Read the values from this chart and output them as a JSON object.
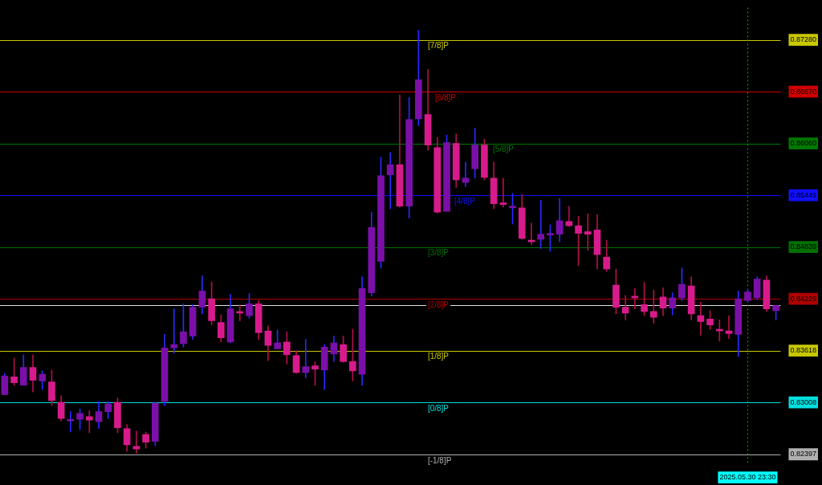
{
  "chart_data": {
    "type": "candlestick",
    "categories": [
      null,
      null,
      null,
      null,
      null,
      null,
      null,
      null,
      null,
      null,
      null,
      null,
      null,
      null,
      null,
      null,
      null,
      null,
      null,
      null,
      null,
      null,
      null,
      null,
      null,
      null,
      null,
      null,
      null,
      null,
      null,
      null,
      null,
      null,
      null,
      null,
      null,
      null,
      null,
      null,
      null,
      null,
      null,
      null,
      null,
      null,
      null,
      null,
      null,
      null,
      null,
      null,
      null,
      null,
      null,
      null,
      null,
      null,
      null,
      null,
      null,
      null,
      null,
      null,
      null,
      null,
      null,
      null,
      null,
      null,
      null,
      null,
      null,
      null,
      null,
      null,
      null,
      null,
      null,
      "2025.05.30 23:30",
      null,
      null,
      null
    ],
    "ohlc": [
      [
        0.831,
        0.8335,
        0.831,
        0.8332
      ],
      [
        0.8331,
        0.8353,
        0.8321,
        0.8324
      ],
      [
        0.8321,
        0.8357,
        0.8321,
        0.8342
      ],
      [
        0.8342,
        0.8357,
        0.8313,
        0.8327
      ],
      [
        0.8326,
        0.8338,
        0.8316,
        0.8334
      ],
      [
        0.8325,
        0.8339,
        0.8297,
        0.8303
      ],
      [
        0.8301,
        0.8309,
        0.8279,
        0.8282
      ],
      [
        0.8279,
        0.829,
        0.8266,
        0.828
      ],
      [
        0.8281,
        0.8293,
        0.8269,
        0.8288
      ],
      [
        0.8284,
        0.8291,
        0.8265,
        0.828
      ],
      [
        0.8278,
        0.8302,
        0.827,
        0.829
      ],
      [
        0.829,
        0.8302,
        0.8282,
        0.8299
      ],
      [
        0.8301,
        0.8306,
        0.8265,
        0.8271
      ],
      [
        0.827,
        0.8275,
        0.8243,
        0.8251
      ],
      [
        0.8249,
        0.8267,
        0.8241,
        0.8246
      ],
      [
        0.8263,
        0.8266,
        0.8247,
        0.8254
      ],
      [
        0.8255,
        0.8301,
        0.825,
        0.83
      ],
      [
        0.8302,
        0.8381,
        0.8297,
        0.8365
      ],
      [
        0.8365,
        0.8411,
        0.8359,
        0.8369
      ],
      [
        0.837,
        0.8417,
        0.8366,
        0.8384
      ],
      [
        0.8379,
        0.8416,
        0.8375,
        0.8413
      ],
      [
        0.8413,
        0.845,
        0.8405,
        0.8432
      ],
      [
        0.8423,
        0.8443,
        0.8392,
        0.8397
      ],
      [
        0.8395,
        0.8404,
        0.8372,
        0.8377
      ],
      [
        0.8372,
        0.8428,
        0.8371,
        0.8411
      ],
      [
        0.8407,
        0.8416,
        0.8397,
        0.8406
      ],
      [
        0.8403,
        0.8429,
        0.84,
        0.8417
      ],
      [
        0.8417,
        0.8421,
        0.8375,
        0.8383
      ],
      [
        0.8385,
        0.8391,
        0.835,
        0.8368
      ],
      [
        0.8364,
        0.8386,
        0.8364,
        0.8371
      ],
      [
        0.8372,
        0.8384,
        0.8346,
        0.8357
      ],
      [
        0.8356,
        0.8362,
        0.8335,
        0.8336
      ],
      [
        0.8336,
        0.8375,
        0.833,
        0.8343
      ],
      [
        0.8344,
        0.8349,
        0.8321,
        0.834
      ],
      [
        0.8339,
        0.8369,
        0.8316,
        0.8366
      ],
      [
        0.8358,
        0.8379,
        0.8349,
        0.8371
      ],
      [
        0.8369,
        0.8379,
        0.8348,
        0.8349
      ],
      [
        0.8349,
        0.8387,
        0.8326,
        0.8338
      ],
      [
        0.8334,
        0.8449,
        0.8321,
        0.8435
      ],
      [
        0.843,
        0.8525,
        0.8426,
        0.8507
      ],
      [
        0.8467,
        0.859,
        0.8459,
        0.8568
      ],
      [
        0.8569,
        0.8595,
        0.8529,
        0.8581
      ],
      [
        0.8581,
        0.8663,
        0.8531,
        0.8532
      ],
      [
        0.8532,
        0.866,
        0.8518,
        0.8634
      ],
      [
        0.8635,
        0.8739,
        0.8627,
        0.8681
      ],
      [
        0.864,
        0.8693,
        0.8598,
        0.8604
      ],
      [
        0.8601,
        0.8613,
        0.8524,
        0.8525
      ],
      [
        0.8526,
        0.8616,
        0.8526,
        0.8607
      ],
      [
        0.8606,
        0.8617,
        0.8554,
        0.8563
      ],
      [
        0.856,
        0.8584,
        0.8555,
        0.8565
      ],
      [
        0.8576,
        0.8624,
        0.8565,
        0.8604
      ],
      [
        0.8604,
        0.8611,
        0.8563,
        0.8566
      ],
      [
        0.8565,
        0.8584,
        0.8529,
        0.8535
      ],
      [
        0.8535,
        0.8565,
        0.8531,
        0.8534
      ],
      [
        0.853,
        0.8547,
        0.8511,
        0.8532
      ],
      [
        0.853,
        0.8546,
        0.8493,
        0.8494
      ],
      [
        0.8492,
        0.8512,
        0.8487,
        0.849
      ],
      [
        0.8493,
        0.8539,
        0.8482,
        0.8499
      ],
      [
        0.8498,
        0.851,
        0.8479,
        0.8499
      ],
      [
        0.8499,
        0.8541,
        0.849,
        0.8515
      ],
      [
        0.8514,
        0.8532,
        0.8508,
        0.8509
      ],
      [
        0.8509,
        0.852,
        0.8462,
        0.85
      ],
      [
        0.8502,
        0.8523,
        0.848,
        0.8499
      ],
      [
        0.8504,
        0.8522,
        0.8458,
        0.8475
      ],
      [
        0.8472,
        0.8492,
        0.8455,
        0.8458
      ],
      [
        0.8439,
        0.8458,
        0.8405,
        0.8413
      ],
      [
        0.8413,
        0.8427,
        0.8398,
        0.8406
      ],
      [
        0.8426,
        0.8435,
        0.8411,
        0.8424
      ],
      [
        0.8416,
        0.8442,
        0.8403,
        0.8408
      ],
      [
        0.8408,
        0.8433,
        0.8394,
        0.8401
      ],
      [
        0.8425,
        0.8436,
        0.8403,
        0.8412
      ],
      [
        0.8412,
        0.843,
        0.8404,
        0.8424
      ],
      [
        0.8424,
        0.8459,
        0.8421,
        0.844
      ],
      [
        0.8438,
        0.8449,
        0.8398,
        0.8405
      ],
      [
        0.8403,
        0.8419,
        0.838,
        0.8396
      ],
      [
        0.8399,
        0.8409,
        0.8387,
        0.8392
      ],
      [
        0.8386,
        0.8398,
        0.8373,
        0.8385
      ],
      [
        0.8385,
        0.8403,
        0.8376,
        0.8382
      ],
      [
        0.8381,
        0.8432,
        0.8355,
        0.8423
      ],
      [
        0.8421,
        0.8434,
        0.8419,
        0.8431
      ],
      [
        0.8424,
        0.8449,
        0.8422,
        0.8446
      ],
      [
        0.8445,
        0.845,
        0.8408,
        0.8411
      ],
      [
        0.8409,
        0.8415,
        0.8398,
        0.8415
      ]
    ],
    "colors": [
      "#7b10a8",
      "#d81b8c",
      "#7b10a8",
      "#d81b8c",
      "#7b10a8",
      "#d81b8c",
      "#d81b8c",
      "#7b10a8",
      "#7b10a8",
      "#d81b8c",
      "#7b10a8",
      "#7b10a8",
      "#d81b8c",
      "#d81b8c",
      "#d81b8c",
      "#d81b8c",
      "#7b10a8",
      "#7b10a8",
      "#7b10a8",
      "#7b10a8",
      "#7b10a8",
      "#7b10a8",
      "#d81b8c",
      "#d81b8c",
      "#7b10a8",
      "#d81b8c",
      "#7b10a8",
      "#d81b8c",
      "#d81b8c",
      "#7b10a8",
      "#d81b8c",
      "#d81b8c",
      "#7b10a8",
      "#d81b8c",
      "#7b10a8",
      "#7b10a8",
      "#d81b8c",
      "#d81b8c",
      "#7b10a8",
      "#7b10a8",
      "#7b10a8",
      "#7b10a8",
      "#d81b8c",
      "#7b10a8",
      "#7b10a8",
      "#d81b8c",
      "#d81b8c",
      "#7b10a8",
      "#d81b8c",
      "#7b10a8",
      "#7b10a8",
      "#d81b8c",
      "#d81b8c",
      "#d81b8c",
      "#7b10a8",
      "#d81b8c",
      "#d81b8c",
      "#7b10a8",
      "#7b10a8",
      "#7b10a8",
      "#d81b8c",
      "#d81b8c",
      "#d81b8c",
      "#d81b8c",
      "#d81b8c",
      "#d81b8c",
      "#d81b8c",
      "#d81b8c",
      "#d81b8c",
      "#d81b8c",
      "#d81b8c",
      "#7b10a8",
      "#7b10a8",
      "#d81b8c",
      "#d81b8c",
      "#d81b8c",
      "#d81b8c",
      "#d81b8c",
      "#7b10a8",
      "#7b10a8",
      "#7b10a8",
      "#d81b8c",
      "#7b10a8"
    ],
    "ylim": [
      0.8227,
      0.8766
    ],
    "yticks": [
      {
        "value": 0.8728,
        "label": "0.87280"
      },
      {
        "value": 0.8667,
        "label": "0.86670"
      },
      {
        "value": 0.8606,
        "label": "0.86060"
      },
      {
        "value": 0.85449,
        "label": "0.85449"
      },
      {
        "value": 0.84839,
        "label": "0.84839"
      },
      {
        "value": 0.84229,
        "label": "0.84229"
      },
      {
        "value": 0.83618,
        "label": "0.83618"
      },
      {
        "value": 0.83008,
        "label": "0.83008"
      },
      {
        "value": 0.82397,
        "label": "0.82397"
      }
    ],
    "ref_lines": [
      {
        "axis": "y",
        "value": 0.8728,
        "label": "[7/8]P",
        "color": "#c8c800"
      },
      {
        "axis": "y",
        "value": 0.8667,
        "label": "[6/8]P",
        "color": "#d00000"
      },
      {
        "axis": "y",
        "value": 0.8606,
        "label": "[5/8]P",
        "color": "#007800"
      },
      {
        "axis": "y",
        "value": 0.85449,
        "label": "[4/8]P",
        "color": "#1010ff"
      },
      {
        "axis": "y",
        "value": 0.84839,
        "label": "[3/8]P",
        "color": "#007000"
      },
      {
        "axis": "y",
        "value": 0.84229,
        "label": "[2/8]P",
        "color": "#b00000"
      },
      {
        "axis": "y",
        "value": 0.83618,
        "label": "[1/8]P",
        "color": "#c8c800"
      },
      {
        "axis": "y",
        "value": 0.83008,
        "label": "[0/8]P",
        "color": "#00e0e0"
      },
      {
        "axis": "y",
        "value": 0.82397,
        "label": "[-1/8]P",
        "color": "#b0b0b0"
      },
      {
        "axis": "y",
        "value": 0.8415,
        "color": "#e0e0e0"
      },
      {
        "axis": "x",
        "value": "2025.05.30 23:30",
        "color": "#00b000",
        "line_style": "dotted"
      }
    ],
    "legend": false
  }
}
